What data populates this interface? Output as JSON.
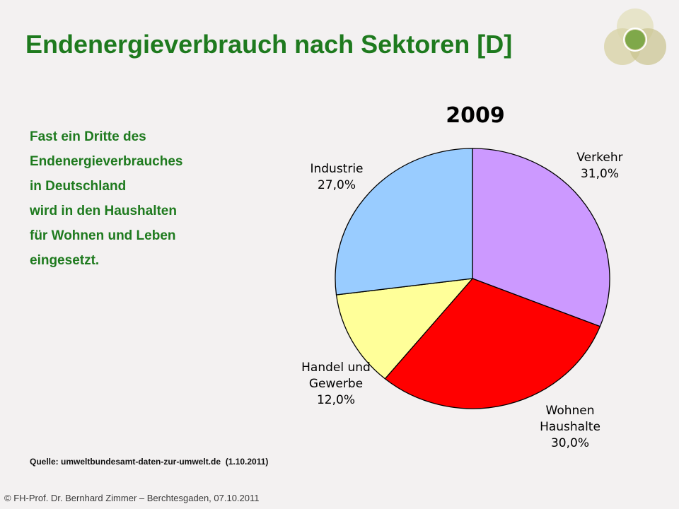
{
  "slide": {
    "title": "Endenergieverbrauch nach Sektoren [D]",
    "body_lines": [
      "Fast ein Dritte des",
      "Endenergieverbrauches",
      "in Deutschland",
      "wird in den Haushalten",
      "für Wohnen und Leben",
      "eingesetzt."
    ],
    "source": "Quelle: umweltbundesamt-daten-zur-umwelt.de  (1.10.2011)",
    "footer": "© FH-Prof. Dr. Bernhard Zimmer  –  Berchtesgaden, 07.10.2011",
    "logo_icon": "overlapping-circles-logo-icon",
    "colors": {
      "title": "#1e7a1e",
      "background": "#f3f1f1"
    }
  },
  "chart_data": {
    "type": "pie",
    "title": "2009",
    "slices": [
      {
        "label_lines": [
          "Verkehr"
        ],
        "value_label": "31,0%",
        "value": 31.0,
        "color": "#cc99ff"
      },
      {
        "label_lines": [
          "Wohnen",
          "Haushalte"
        ],
        "value_label": "30,0%",
        "value": 30.0,
        "color": "#ff0000"
      },
      {
        "label_lines": [
          "Handel und",
          "Gewerbe"
        ],
        "value_label": "12,0%",
        "value": 12.0,
        "color": "#ffff99"
      },
      {
        "label_lines": [
          "Industrie"
        ],
        "value_label": "27,0%",
        "value": 27.0,
        "color": "#99ccff"
      }
    ],
    "legend": "none"
  }
}
